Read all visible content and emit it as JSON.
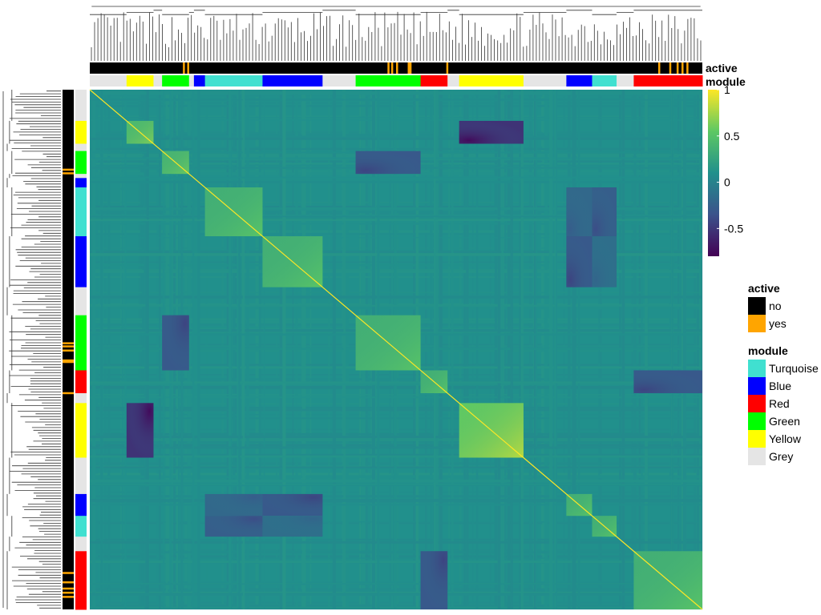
{
  "chart_data": {
    "type": "heatmap",
    "colorbar": {
      "ticks": [
        "1",
        "0.5",
        "0",
        "-0.5"
      ],
      "tick_values": [
        1,
        0.5,
        0,
        -0.5
      ],
      "range": [
        -0.8,
        1
      ],
      "colormap": [
        "#440154",
        "#3b528b",
        "#21908c",
        "#5dc863",
        "#fde725"
      ]
    },
    "annotations": [
      "active",
      "module"
    ],
    "legends": [
      {
        "title": "active",
        "items": [
          {
            "label": "no",
            "color": "#000000"
          },
          {
            "label": "yes",
            "color": "#ffa500"
          }
        ]
      },
      {
        "title": "module",
        "items": [
          {
            "label": "Turquoise",
            "color": "#40e0d0"
          },
          {
            "label": "Blue",
            "color": "#0000ff"
          },
          {
            "label": "Red",
            "color": "#ff0000"
          },
          {
            "label": "Green",
            "color": "#00ff00"
          },
          {
            "label": "Yellow",
            "color": "#ffff00"
          },
          {
            "label": "Grey",
            "color": "#e5e5e5"
          }
        ]
      }
    ],
    "module_order": [
      "Grey",
      "Yellow",
      "Grey",
      "Green",
      "Grey",
      "Blue",
      "Turquoise",
      "Blue",
      "Grey",
      "Green",
      "Red",
      "Grey",
      "Yellow",
      "Grey",
      "Blue",
      "Turquoise",
      "Grey",
      "Red"
    ],
    "module_spans": [
      [
        0.0,
        0.06
      ],
      [
        0.06,
        0.104
      ],
      [
        0.104,
        0.118
      ],
      [
        0.118,
        0.162
      ],
      [
        0.162,
        0.17
      ],
      [
        0.17,
        0.188
      ],
      [
        0.188,
        0.282
      ],
      [
        0.282,
        0.38
      ],
      [
        0.38,
        0.434
      ],
      [
        0.434,
        0.54
      ],
      [
        0.54,
        0.584
      ],
      [
        0.584,
        0.603
      ],
      [
        0.603,
        0.708
      ],
      [
        0.708,
        0.778
      ],
      [
        0.778,
        0.82
      ],
      [
        0.82,
        0.86
      ],
      [
        0.86,
        0.888
      ],
      [
        0.888,
        1.0
      ]
    ],
    "blocks": [
      {
        "module": "Yellow",
        "span": [
          0.06,
          0.104
        ],
        "within_corr": 0.55
      },
      {
        "module": "Green",
        "span": [
          0.118,
          0.162
        ],
        "within_corr": 0.5
      },
      {
        "module": "Turquoise",
        "span": [
          0.188,
          0.282
        ],
        "within_corr": 0.45
      },
      {
        "module": "Blue",
        "span": [
          0.282,
          0.38
        ],
        "within_corr": 0.45
      },
      {
        "module": "Green",
        "span": [
          0.434,
          0.54
        ],
        "within_corr": 0.45
      },
      {
        "module": "Red",
        "span": [
          0.54,
          0.584
        ],
        "within_corr": 0.45
      },
      {
        "module": "Yellow",
        "span": [
          0.603,
          0.708
        ],
        "within_corr": 0.7
      },
      {
        "module": "Blue",
        "span": [
          0.778,
          0.82
        ],
        "within_corr": 0.45
      },
      {
        "module": "Turquoise",
        "span": [
          0.82,
          0.86
        ],
        "within_corr": 0.45
      },
      {
        "module": "Red",
        "span": [
          0.888,
          1.0
        ],
        "within_corr": 0.45
      }
    ],
    "anti_correlated_pairs": [
      {
        "a": "Yellow (0.060-0.104)",
        "b": "Yellow (0.603-0.708)",
        "corr": -0.7
      },
      {
        "a": "Green (0.118-0.162)",
        "b": "Green (0.434-0.540)",
        "corr": -0.4
      },
      {
        "a": "Turquoise (0.188-0.282)",
        "b": "Blue (0.778-0.820)",
        "corr": -0.25
      },
      {
        "a": "Turquoise (0.188-0.282)",
        "b": "Turquoise (0.820-0.860)",
        "corr": -0.35
      },
      {
        "a": "Blue (0.282-0.380)",
        "b": "Blue (0.778-0.820)",
        "corr": -0.4
      },
      {
        "a": "Blue (0.282-0.380)",
        "b": "Turquoise (0.820-0.860)",
        "corr": -0.2
      },
      {
        "a": "Red (0.540-0.584)",
        "b": "Red (0.888-1.000)",
        "corr": -0.4
      }
    ],
    "active_marks": [
      0.152,
      0.159,
      0.486,
      0.492,
      0.5,
      0.519,
      0.522,
      0.582,
      0.928,
      0.946,
      0.958,
      0.966,
      0.974
    ],
    "diagonal": 1,
    "background_corr": 0.1
  }
}
